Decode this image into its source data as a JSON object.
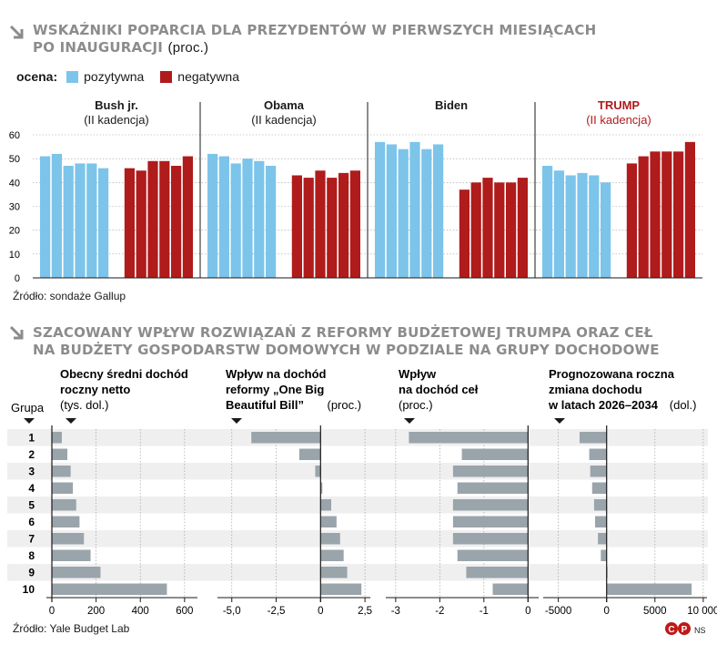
{
  "chart1": {
    "title_line1": "WSKAŹNIKI POPARCIA DLA PREZYDENTÓW W PIERWSZYCH  MIESIĄCACH",
    "title_line2": "PO INAUGURACJI",
    "unit": "(proc.)",
    "legend_label": "ocena:",
    "legend": [
      {
        "name": "pozytywna",
        "color": "#7cc4ea"
      },
      {
        "name": "negatywna",
        "color": "#b01b1b"
      }
    ],
    "source": "Źródło: sondaże Gallup"
  },
  "chart2": {
    "title_line1": "SZACOWANY WPŁYW ROZWIĄZAŃ Z REFORMY BUDŻETOWEJ TRUMPA ORAZ CEŁ",
    "title_line2": "NA BUDŻETY GOSPODARSTW DOMOWYCH W PODZIALE NA GRUPY DOCHODOWE",
    "group_header": "Grupa",
    "source": "Źródło: Yale Budget Lab",
    "logo_text": "NS"
  },
  "chart_data": [
    {
      "type": "bar",
      "title": "Wskaźniki poparcia dla prezydentów w pierwszych miesiącach po inauguracji (proc.)",
      "ylim": [
        0,
        60
      ],
      "yticks": [
        "0",
        "10",
        "20",
        "30",
        "40",
        "50",
        "60"
      ],
      "panels": [
        {
          "name": "Bush jr.",
          "subtitle": "(II kadencja)",
          "highlight": false,
          "positive": [
            51,
            52,
            47,
            48,
            48,
            46
          ],
          "negative": [
            46,
            45,
            49,
            49,
            47,
            51
          ]
        },
        {
          "name": "Obama",
          "subtitle": "(II kadencja)",
          "highlight": false,
          "positive": [
            52,
            51,
            48,
            50,
            49,
            47
          ],
          "negative": [
            43,
            42,
            45,
            42,
            44,
            45
          ]
        },
        {
          "name": "Biden",
          "subtitle": "",
          "highlight": false,
          "positive": [
            57,
            56,
            54,
            57,
            54,
            56
          ],
          "negative": [
            37,
            40,
            42,
            40,
            40,
            42
          ]
        },
        {
          "name": "TRUMP",
          "subtitle": "(II kadencja)",
          "highlight": true,
          "positive": [
            47,
            45,
            43,
            44,
            43,
            40
          ],
          "negative": [
            48,
            51,
            53,
            53,
            53,
            57
          ]
        }
      ]
    },
    {
      "type": "bar",
      "title": "Szacowany wpływ rozwiązań z reformy budżetowej Trumpa oraz ceł na budżety gospodarstw domowych w podziale na grupy dochodowe",
      "categories": [
        "1",
        "2",
        "3",
        "4",
        "5",
        "6",
        "7",
        "8",
        "9",
        "10"
      ],
      "panels": [
        {
          "title_lines": [
            "Obecny średni dochód",
            "roczny netto"
          ],
          "unit": "(tys. dol.)",
          "xlim": [
            0,
            650
          ],
          "ticks": [
            0,
            200,
            400,
            600
          ],
          "tick_labels": [
            "0",
            "200",
            "400",
            "600"
          ],
          "values": [
            45,
            70,
            85,
            95,
            110,
            125,
            145,
            175,
            220,
            520
          ]
        },
        {
          "title_lines": [
            "Wpływ na dochód",
            "reformy „One Big",
            "Beautiful Bill”"
          ],
          "unit": "(proc.)",
          "xlim": [
            -5.5,
            2.7
          ],
          "ticks": [
            -5,
            -2.5,
            0,
            2.5
          ],
          "tick_labels": [
            "-5,0",
            "-2,5",
            "0",
            "2,5"
          ],
          "values": [
            -3.9,
            -1.2,
            -0.3,
            0.1,
            0.6,
            0.9,
            1.1,
            1.3,
            1.5,
            2.3
          ]
        },
        {
          "title_lines": [
            "Wpływ",
            "na dochód ceł"
          ],
          "unit": "(proc.)",
          "xlim": [
            -3.1,
            0.2
          ],
          "ticks": [
            -3,
            -2,
            -1,
            0
          ],
          "tick_labels": [
            "-3",
            "-2",
            "-1",
            "0"
          ],
          "values": [
            -2.7,
            -1.5,
            -1.7,
            -1.6,
            -1.7,
            -1.7,
            -1.7,
            -1.6,
            -1.4,
            -0.8
          ]
        },
        {
          "title_lines": [
            "Prognozowana roczna",
            "zmiana dochodu",
            "w latach 2026–2034"
          ],
          "unit": "(dol.)",
          "xlim": [
            -6000,
            10200
          ],
          "ticks": [
            -5000,
            0,
            5000,
            10000
          ],
          "tick_labels": [
            "-5000",
            "0",
            "5000",
            "10 000"
          ],
          "values": [
            -2800,
            -1800,
            -1700,
            -1500,
            -1300,
            -1200,
            -900,
            -600,
            30,
            8800
          ]
        }
      ]
    }
  ]
}
